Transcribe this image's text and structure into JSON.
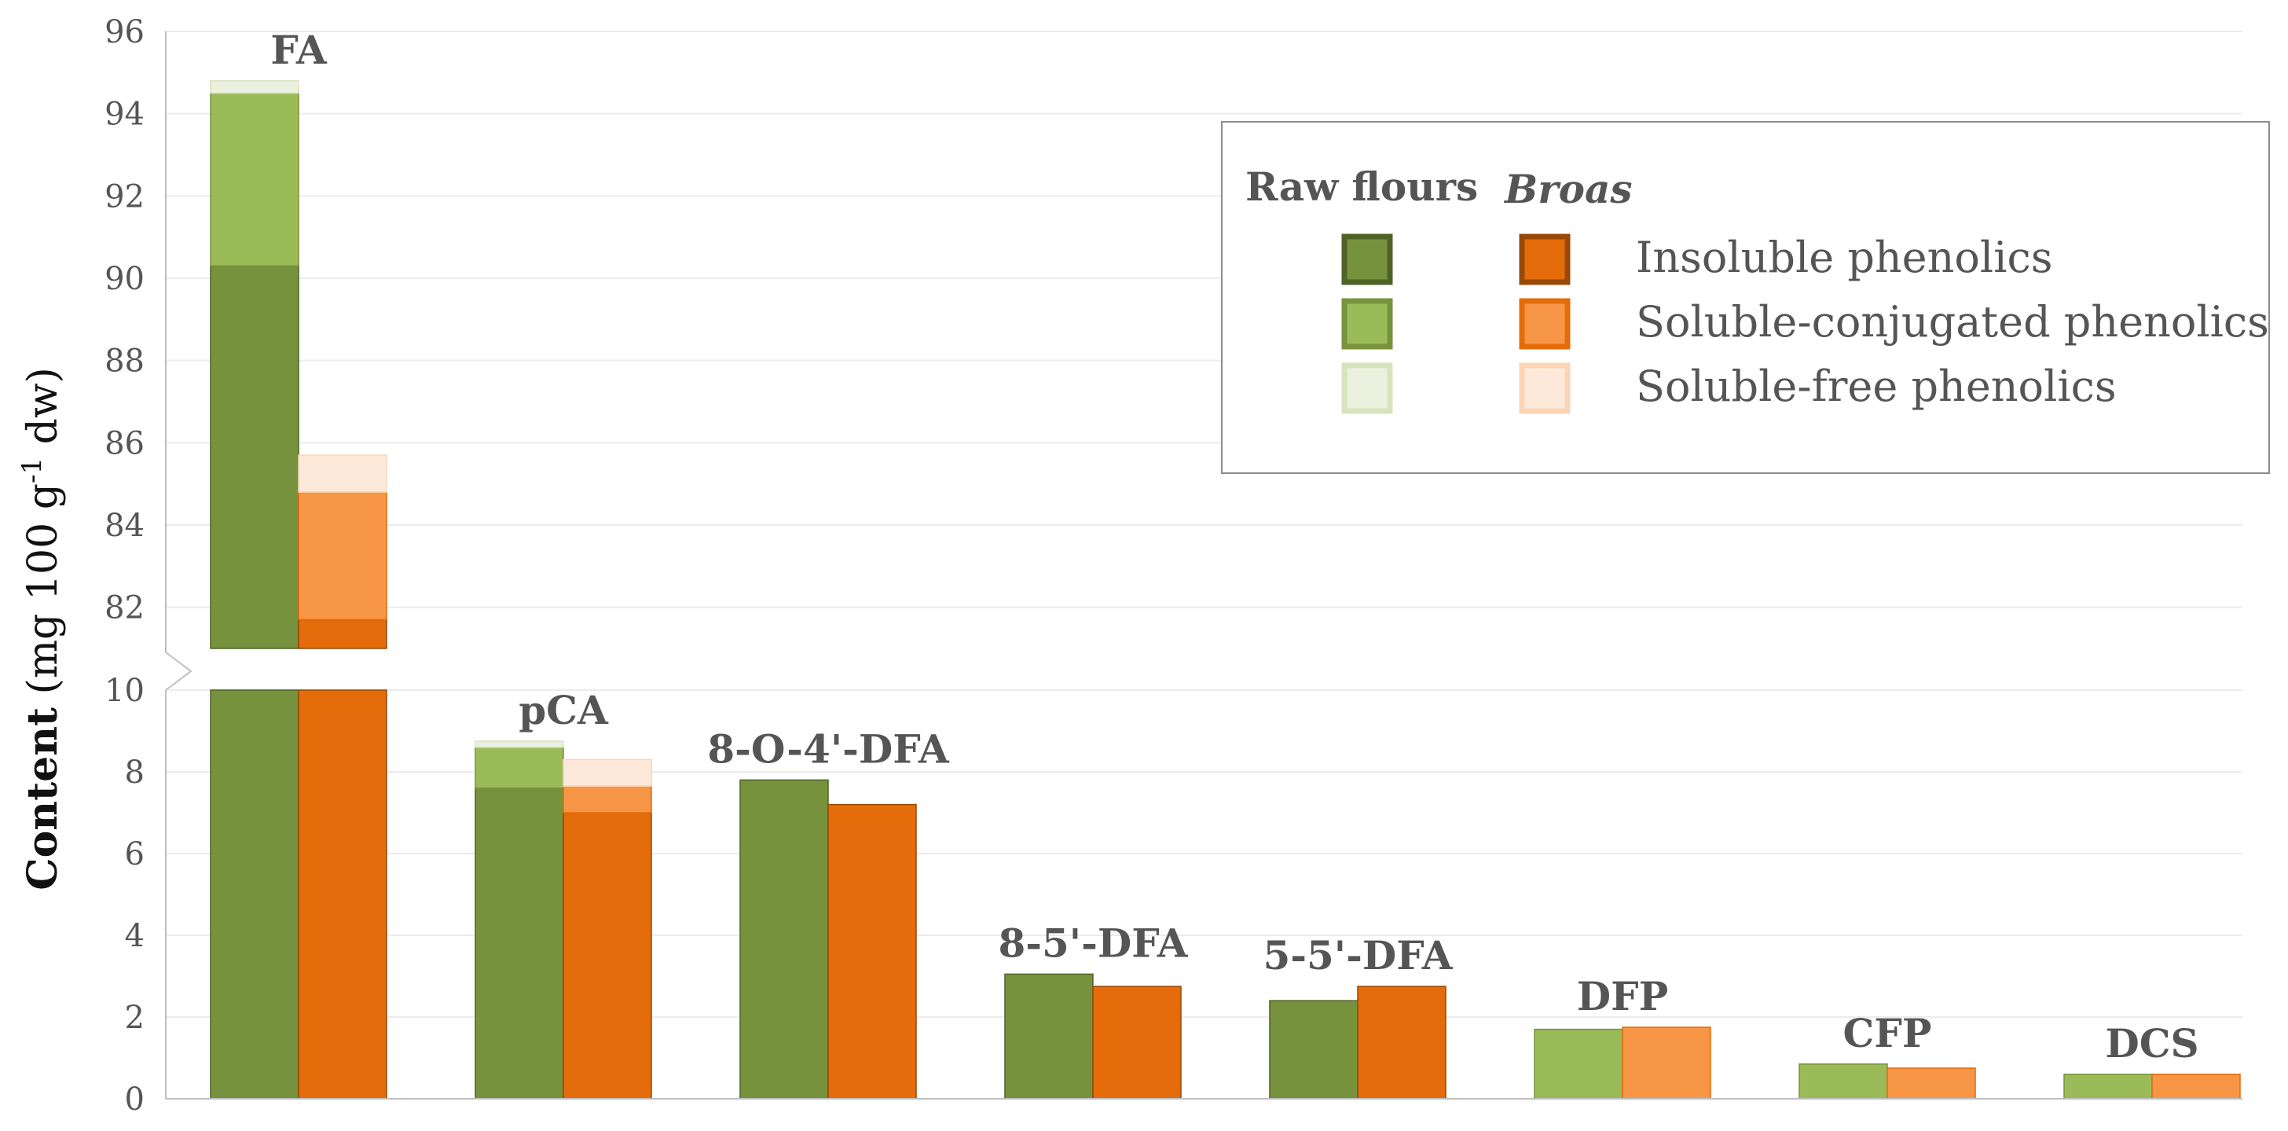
{
  "chart_data": {
    "type": "bar",
    "stacked": true,
    "ylabel": {
      "bold": "Content",
      "rest_pre": " (mg 100 g",
      "sup": "-1",
      "rest_post": " dw)"
    },
    "broken_axis": {
      "lower_ylim": [
        0,
        10
      ],
      "upper_ylim": [
        81,
        96
      ]
    },
    "lower_ticks": [
      "0",
      "2",
      "4",
      "6",
      "8",
      "10"
    ],
    "upper_ticks": [
      "82",
      "84",
      "86",
      "88",
      "90",
      "92",
      "94",
      "96"
    ],
    "categories": [
      "FA",
      "pCA",
      "8-O-4'-DFA",
      "8-5'-DFA",
      "5-5'-DFA",
      "DFP",
      "CFP",
      "DCS"
    ],
    "groups": [
      "Raw flours",
      "Broas"
    ],
    "series": [
      {
        "group": "Raw flours",
        "name": "Insoluble phenolics",
        "values": [
          90.3,
          7.6,
          7.8,
          3.05,
          2.4,
          0,
          0,
          0
        ]
      },
      {
        "group": "Raw flours",
        "name": "Soluble-conjugated phenolics",
        "values": [
          4.2,
          1.0,
          0,
          0,
          0,
          1.7,
          0.85,
          0.6
        ]
      },
      {
        "group": "Raw flours",
        "name": "Soluble-free phenolics",
        "values": [
          0.3,
          0.15,
          0,
          0,
          0,
          0,
          0,
          0
        ]
      },
      {
        "group": "Broas",
        "name": "Insoluble phenolics",
        "values": [
          81.7,
          7.0,
          7.2,
          2.75,
          2.75,
          0,
          0,
          0
        ]
      },
      {
        "group": "Broas",
        "name": "Soluble-conjugated phenolics",
        "values": [
          3.1,
          0.65,
          0,
          0,
          0,
          1.75,
          0.75,
          0.6
        ]
      },
      {
        "group": "Broas",
        "name": "Soluble-free phenolics",
        "values": [
          0.9,
          0.65,
          0,
          0,
          0,
          0,
          0,
          0
        ]
      }
    ],
    "legend": {
      "position": "top-right",
      "header_raw": "Raw flours",
      "header_broas": "Broas",
      "items": [
        "Insoluble phenolics",
        "Soluble-conjugated phenolics",
        "Soluble-free phenolics"
      ]
    },
    "colors": {
      "raw": [
        "#77923c",
        "#9bbb59",
        "#ebf1de"
      ],
      "raw_border": [
        "#4f6228",
        "#77933c",
        "#d7e4bd"
      ],
      "broas": [
        "#e46c0a",
        "#f79646",
        "#fde9d9"
      ],
      "broas_border": [
        "#984807",
        "#e46c0a",
        "#fcd5b5"
      ]
    },
    "grid": true
  }
}
